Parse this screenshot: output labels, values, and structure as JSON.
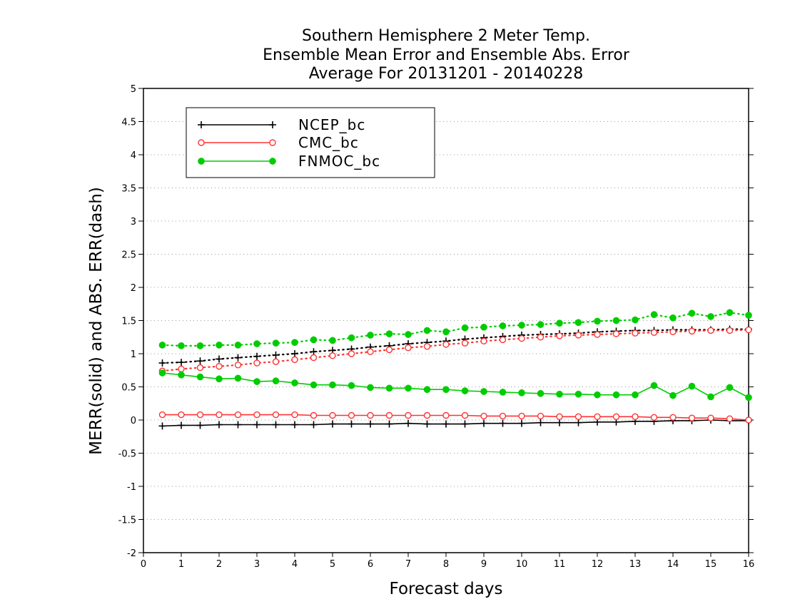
{
  "chart_data": {
    "type": "line",
    "title": [
      "Southern Hemisphere 2 Meter Temp.",
      "Ensemble Mean Error and Ensemble Abs. Error",
      "Average For 20131201 - 20140228"
    ],
    "xlabel": "Forecast days",
    "ylabel": "MERR(solid) and ABS. ERR(dash)",
    "xlim": [
      0,
      16
    ],
    "ylim": [
      -2,
      5
    ],
    "xticks": [
      0,
      1,
      2,
      3,
      4,
      5,
      6,
      7,
      8,
      9,
      10,
      11,
      12,
      13,
      14,
      15,
      16
    ],
    "yticks": [
      -2,
      -1.5,
      -1,
      -0.5,
      0,
      0.5,
      1,
      1.5,
      2,
      2.5,
      3,
      3.5,
      4,
      4.5,
      5
    ],
    "ytick_labels": [
      "-2",
      "-1.5",
      "-1",
      "-0.5",
      "0",
      "0.5",
      "1",
      "1.5",
      "2",
      "2.5",
      "3",
      "3.5",
      "4",
      "4.5",
      "5"
    ],
    "xtick_labels": [
      "0",
      "1",
      "2",
      "3",
      "4",
      "5",
      "6",
      "7",
      "8",
      "9",
      "10",
      "11",
      "12",
      "13",
      "14",
      "15",
      "16"
    ],
    "grid": "horizontal dotted",
    "legend_position": "top-left",
    "x": [
      0.5,
      1,
      1.5,
      2,
      2.5,
      3,
      3.5,
      4,
      4.5,
      5,
      5.5,
      6,
      6.5,
      7,
      7.5,
      8,
      8.5,
      9,
      9.5,
      10,
      10.5,
      11,
      11.5,
      12,
      12.5,
      13,
      13.5,
      14,
      14.5,
      15,
      15.5,
      16
    ],
    "series": [
      {
        "name": "NCEP_bc",
        "color": "#000000",
        "marker": "plus",
        "merr": [
          -0.09,
          -0.08,
          -0.08,
          -0.07,
          -0.07,
          -0.07,
          -0.07,
          -0.07,
          -0.07,
          -0.06,
          -0.06,
          -0.06,
          -0.06,
          -0.05,
          -0.06,
          -0.06,
          -0.06,
          -0.05,
          -0.05,
          -0.05,
          -0.04,
          -0.04,
          -0.04,
          -0.03,
          -0.03,
          -0.02,
          -0.02,
          -0.01,
          -0.01,
          0.0,
          -0.01,
          -0.01
        ],
        "abs_err": [
          0.86,
          0.87,
          0.89,
          0.92,
          0.94,
          0.96,
          0.98,
          1.0,
          1.03,
          1.05,
          1.07,
          1.1,
          1.12,
          1.15,
          1.17,
          1.19,
          1.22,
          1.24,
          1.26,
          1.28,
          1.29,
          1.3,
          1.31,
          1.33,
          1.34,
          1.35,
          1.35,
          1.36,
          1.36,
          1.36,
          1.37,
          1.37
        ]
      },
      {
        "name": "CMC_bc",
        "color": "#ff3333",
        "marker": "open-circle",
        "merr": [
          0.08,
          0.08,
          0.08,
          0.08,
          0.08,
          0.08,
          0.08,
          0.08,
          0.07,
          0.07,
          0.07,
          0.07,
          0.07,
          0.07,
          0.07,
          0.07,
          0.07,
          0.06,
          0.06,
          0.06,
          0.06,
          0.05,
          0.05,
          0.05,
          0.05,
          0.05,
          0.04,
          0.04,
          0.03,
          0.03,
          0.02,
          0.0
        ],
        "abs_err": [
          0.74,
          0.77,
          0.79,
          0.81,
          0.83,
          0.86,
          0.88,
          0.91,
          0.94,
          0.97,
          1.0,
          1.03,
          1.06,
          1.09,
          1.11,
          1.14,
          1.16,
          1.19,
          1.21,
          1.23,
          1.25,
          1.27,
          1.28,
          1.29,
          1.3,
          1.31,
          1.32,
          1.33,
          1.34,
          1.35,
          1.35,
          1.36
        ]
      },
      {
        "name": "FNMOC_bc",
        "color": "#00cc00",
        "marker": "filled-circle",
        "merr": [
          0.71,
          0.68,
          0.65,
          0.62,
          0.63,
          0.58,
          0.59,
          0.56,
          0.53,
          0.53,
          0.52,
          0.49,
          0.48,
          0.48,
          0.46,
          0.46,
          0.44,
          0.43,
          0.42,
          0.41,
          0.4,
          0.39,
          0.39,
          0.38,
          0.38,
          0.38,
          0.52,
          0.37,
          0.51,
          0.35,
          0.49,
          0.34
        ],
        "abs_err": [
          1.13,
          1.12,
          1.12,
          1.13,
          1.13,
          1.15,
          1.16,
          1.17,
          1.21,
          1.2,
          1.24,
          1.28,
          1.3,
          1.29,
          1.35,
          1.33,
          1.39,
          1.4,
          1.42,
          1.43,
          1.44,
          1.46,
          1.47,
          1.49,
          1.5,
          1.51,
          1.59,
          1.54,
          1.61,
          1.56,
          1.62,
          1.58
        ]
      }
    ]
  }
}
